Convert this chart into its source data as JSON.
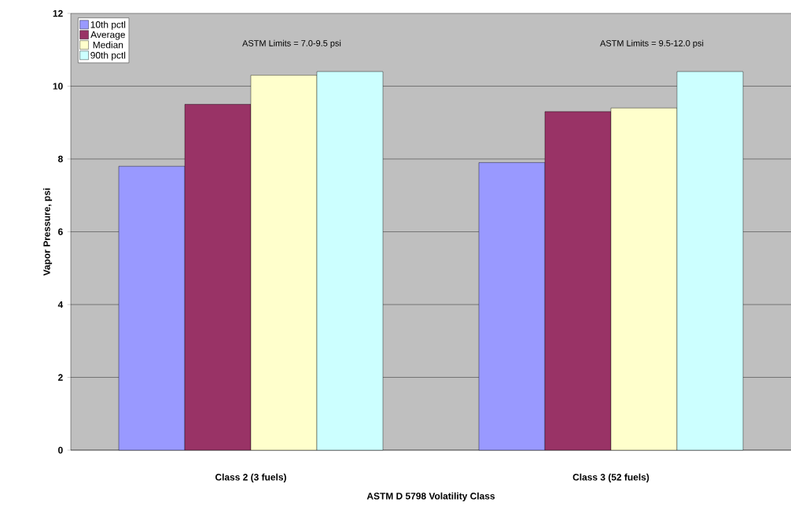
{
  "chart_data": {
    "type": "bar",
    "xlabel": "ASTM D 5798 Volatility Class",
    "ylabel": "Vapor Pressure, psi",
    "categories": [
      "Class 2 (3 fuels)",
      "Class 3 (52 fuels)"
    ],
    "series": [
      {
        "name": "10th pctl",
        "color": "#9999ff",
        "values": [
          7.8,
          7.9
        ]
      },
      {
        "name": "Average",
        "color": "#993366",
        "values": [
          9.5,
          9.3
        ]
      },
      {
        "name": "Median",
        "color": "#ffffcc",
        "values": [
          10.3,
          9.4
        ]
      },
      {
        "name": "90th pctl",
        "color": "#ccffff",
        "values": [
          10.4,
          10.4
        ]
      }
    ],
    "annotations": [
      "ASTM Limits = 7.0-9.5 psi",
      "ASTM Limits = 9.5-12.0 psi"
    ],
    "ylim": [
      0,
      12
    ],
    "yticks": [
      0,
      2,
      4,
      6,
      8,
      10,
      12
    ],
    "grid": "y",
    "legend": "top left"
  }
}
